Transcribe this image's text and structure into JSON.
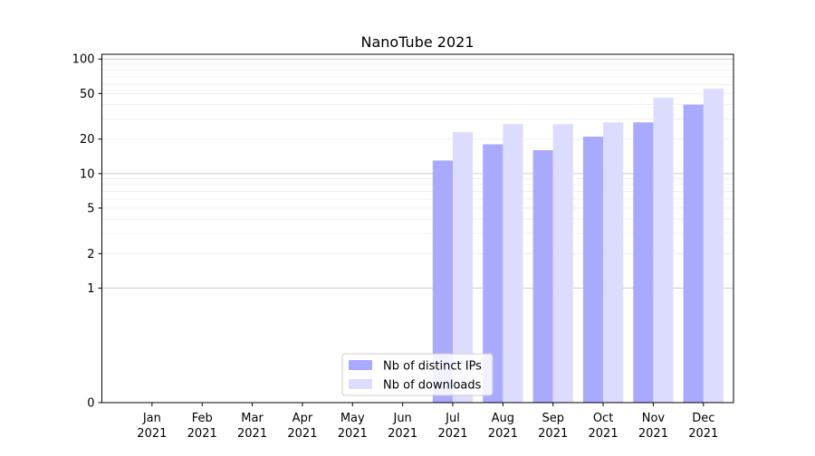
{
  "chart_data": {
    "type": "bar",
    "title": "NanoTube 2021",
    "xlabel": "",
    "ylabel": "",
    "scale": "symlog",
    "ylim": [
      0,
      110
    ],
    "yticks": [
      0,
      1,
      2,
      5,
      10,
      20,
      50,
      100
    ],
    "categories": [
      [
        "Jan",
        "2021"
      ],
      [
        "Feb",
        "2021"
      ],
      [
        "Mar",
        "2021"
      ],
      [
        "Apr",
        "2021"
      ],
      [
        "May",
        "2021"
      ],
      [
        "Jun",
        "2021"
      ],
      [
        "Jul",
        "2021"
      ],
      [
        "Aug",
        "2021"
      ],
      [
        "Sep",
        "2021"
      ],
      [
        "Oct",
        "2021"
      ],
      [
        "Nov",
        "2021"
      ],
      [
        "Dec",
        "2021"
      ]
    ],
    "series": [
      {
        "name": "Nb of distinct IPs",
        "color": "#a9a9fe",
        "values": [
          0,
          0,
          0,
          0,
          0,
          0,
          13,
          18,
          16,
          21,
          28,
          40
        ]
      },
      {
        "name": "Nb of downloads",
        "color": "#dcdcfe",
        "values": [
          0,
          0,
          0,
          0,
          0,
          0,
          23,
          27,
          27,
          28,
          46,
          55
        ]
      }
    ],
    "grid": "horizontal",
    "legend_position": "bottom-center"
  }
}
